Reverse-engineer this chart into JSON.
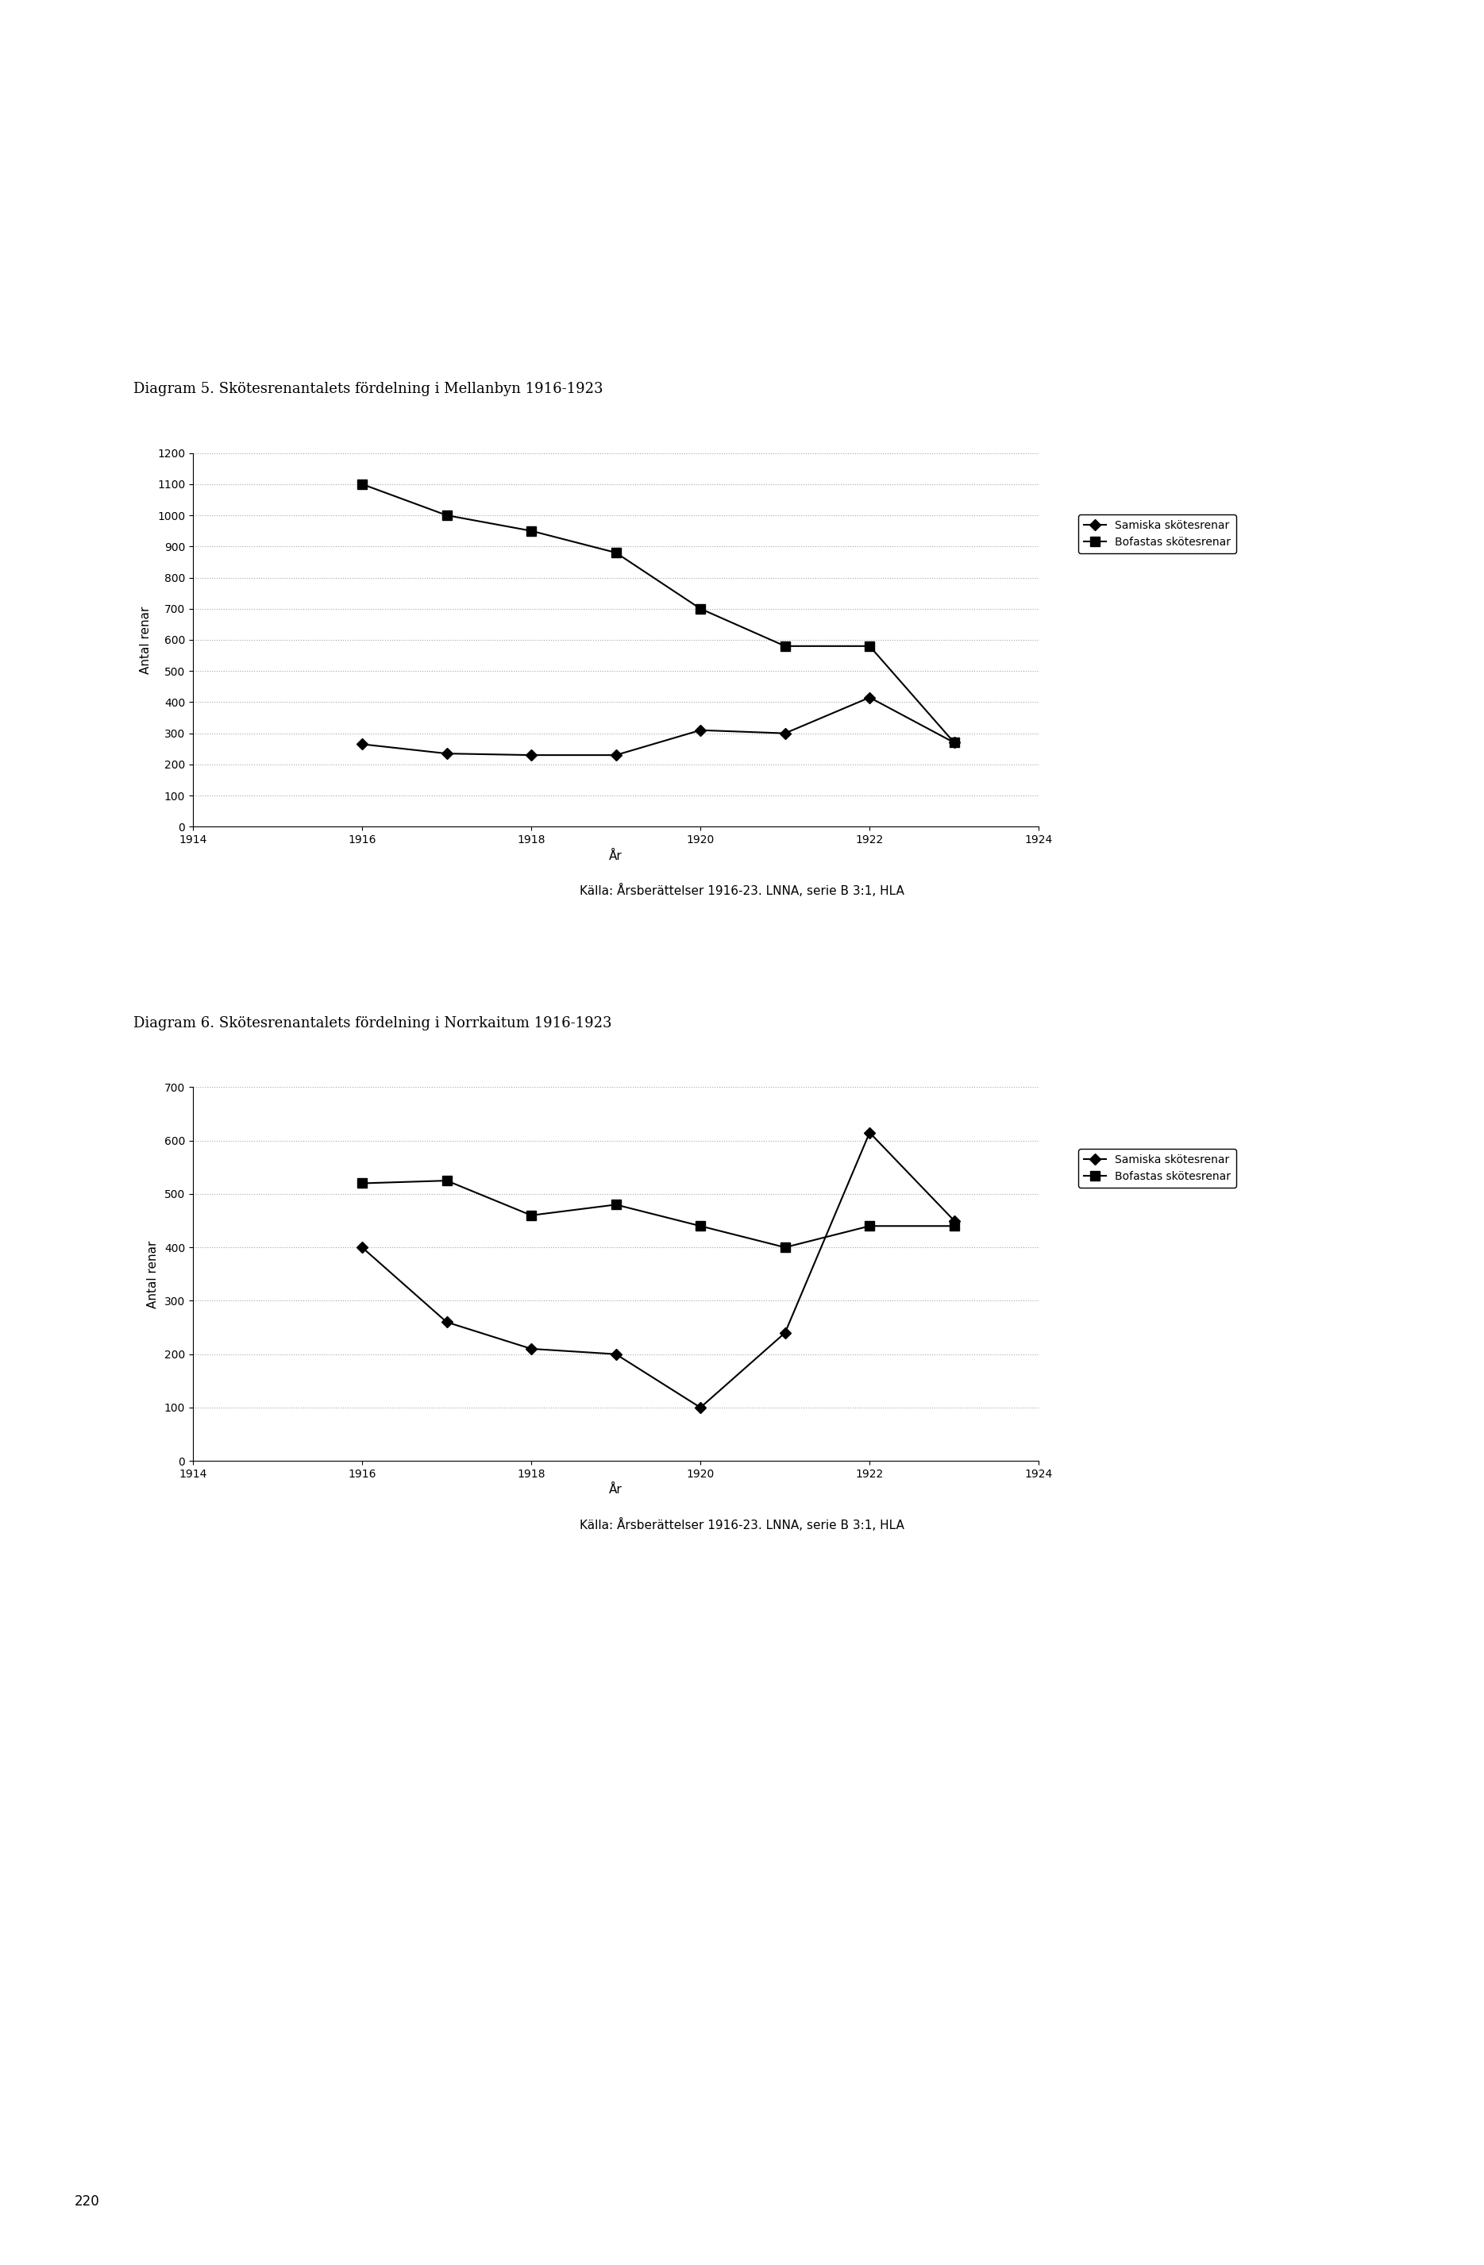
{
  "diagram5": {
    "title": "Diagram 5. Skötesrenantalets fördelning i Mellanbyn 1916-1923",
    "xlabel": "År",
    "ylabel": "Antal renar",
    "ylim": [
      0,
      1200
    ],
    "yticks": [
      0,
      100,
      200,
      300,
      400,
      500,
      600,
      700,
      800,
      900,
      1000,
      1100,
      1200
    ],
    "xlim": [
      1914,
      1924
    ],
    "xticks": [
      1914,
      1916,
      1918,
      1920,
      1922,
      1924
    ],
    "samiska_x": [
      1916,
      1917,
      1918,
      1919,
      1920,
      1921,
      1922,
      1923
    ],
    "samiska_y": [
      265,
      235,
      230,
      230,
      310,
      300,
      415,
      270
    ],
    "bofastas_x": [
      1916,
      1917,
      1918,
      1919,
      1920,
      1921,
      1922,
      1923
    ],
    "bofastas_y": [
      1100,
      1000,
      950,
      880,
      700,
      580,
      580,
      270
    ],
    "source": "Källa: Årsberättelser 1916-23. LNNA, serie B 3:1, HLA"
  },
  "diagram6": {
    "title": "Diagram 6. Skötesrenantalets fördelning i Norrkaitum 1916-1923",
    "xlabel": "År",
    "ylabel": "Antal renar",
    "ylim": [
      0,
      700
    ],
    "yticks": [
      0,
      100,
      200,
      300,
      400,
      500,
      600,
      700
    ],
    "xlim": [
      1914,
      1924
    ],
    "xticks": [
      1914,
      1916,
      1918,
      1920,
      1922,
      1924
    ],
    "samiska_x": [
      1916,
      1917,
      1918,
      1919,
      1920,
      1921,
      1922,
      1923
    ],
    "samiska_y": [
      400,
      260,
      210,
      200,
      100,
      240,
      615,
      450
    ],
    "bofastas_x": [
      1916,
      1917,
      1918,
      1919,
      1920,
      1921,
      1922,
      1923
    ],
    "bofastas_y": [
      520,
      525,
      460,
      480,
      440,
      400,
      440,
      440
    ],
    "source": "Källa: Årsberättelser 1916-23. LNNA, serie B 3:1, HLA"
  },
  "background_color": "#ffffff",
  "legend_samiska": "Samiska skötesrenar",
  "legend_bofastas": "Bofastas skötesrenar",
  "page_number": "220",
  "fig_width": 18.69,
  "fig_height": 28.53
}
